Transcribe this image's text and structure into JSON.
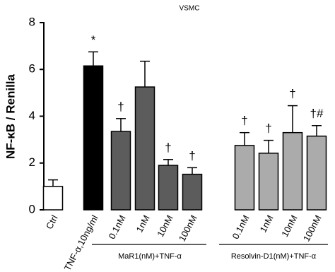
{
  "chart_data": {
    "type": "bar",
    "title": "VSMC",
    "y_label": "NF-κB / Renilla",
    "categories": [
      "Ctrl",
      "TNF-α,10ng/ml",
      "0.1nM",
      "1nM",
      "10nM",
      "100nM",
      "0.1nM",
      "1nM",
      "10nM",
      "100nM"
    ],
    "values": [
      1.0,
      6.15,
      3.35,
      5.25,
      1.9,
      1.52,
      2.75,
      2.42,
      3.3,
      3.15
    ],
    "errors": [
      0.28,
      0.6,
      0.55,
      1.1,
      0.25,
      0.28,
      0.55,
      0.55,
      1.15,
      0.45
    ],
    "colors": [
      "#ffffff",
      "#000000",
      "#5c5c5c",
      "#5c5c5c",
      "#5c5c5c",
      "#5c5c5c",
      "#ababab",
      "#ababab",
      "#ababab",
      "#ababab"
    ],
    "markers": [
      null,
      "*",
      "†",
      null,
      "†",
      "†",
      "†",
      "†",
      "†",
      "†#"
    ],
    "groups": [
      "MaR1(nM)+TNF-α",
      "Resolvin-D1(nM)+TNF-α"
    ],
    "ylim": [
      0,
      8
    ],
    "yticks": [
      0,
      2,
      4,
      6,
      8
    ]
  }
}
